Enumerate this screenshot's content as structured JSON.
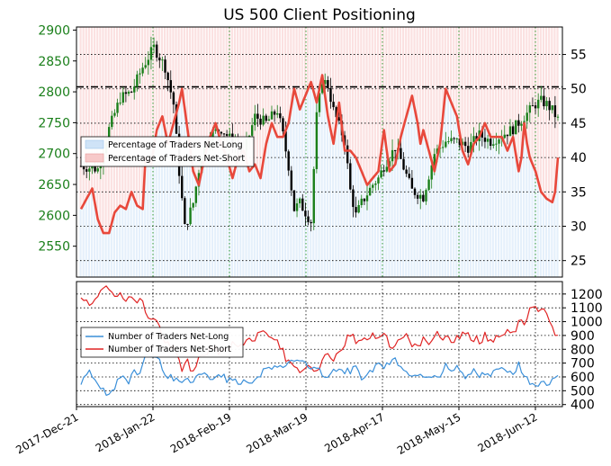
{
  "chart_data": [
    {
      "type": "line",
      "title": "US 500 Client Positioning",
      "x_dates": [
        "2017-Dec-21",
        "2018-Jan-22",
        "2018-Feb-19",
        "2018-Mar-19",
        "2018-Apr-17",
        "2018-May-15",
        "2018-Jun-12"
      ],
      "left_axis": {
        "ticks": [
          2550,
          2600,
          2650,
          2700,
          2750,
          2800,
          2850,
          2900
        ],
        "range": [
          2500,
          2905
        ]
      },
      "right_axis": {
        "ticks": [
          25,
          30,
          35,
          40,
          45,
          50,
          55
        ],
        "range": [
          22.6,
          59
        ]
      },
      "reference_level": 2808,
      "legend": [
        "Percentage of Traders Net-Long",
        "Percentage of Traders Net-Short"
      ],
      "price_anchors": [
        [
          0,
          2680
        ],
        [
          6,
          2675
        ],
        [
          10,
          2740
        ],
        [
          14,
          2790
        ],
        [
          18,
          2800
        ],
        [
          22,
          2840
        ],
        [
          26,
          2872
        ],
        [
          30,
          2840
        ],
        [
          33,
          2780
        ],
        [
          35,
          2670
        ],
        [
          37,
          2580
        ],
        [
          40,
          2620
        ],
        [
          43,
          2700
        ],
        [
          46,
          2730
        ],
        [
          50,
          2740
        ],
        [
          54,
          2720
        ],
        [
          58,
          2700
        ],
        [
          62,
          2760
        ],
        [
          66,
          2750
        ],
        [
          70,
          2770
        ],
        [
          72,
          2730
        ],
        [
          74,
          2680
        ],
        [
          76,
          2610
        ],
        [
          78,
          2620
        ],
        [
          82,
          2590
        ],
        [
          84,
          2760
        ],
        [
          86,
          2820
        ],
        [
          88,
          2810
        ],
        [
          90,
          2770
        ],
        [
          94,
          2720
        ],
        [
          96,
          2640
        ],
        [
          98,
          2600
        ],
        [
          100,
          2620
        ],
        [
          104,
          2650
        ],
        [
          106,
          2660
        ],
        [
          108,
          2680
        ],
        [
          112,
          2710
        ],
        [
          114,
          2690
        ],
        [
          118,
          2640
        ],
        [
          122,
          2630
        ],
        [
          126,
          2700
        ],
        [
          130,
          2720
        ],
        [
          134,
          2720
        ],
        [
          138,
          2710
        ],
        [
          142,
          2730
        ],
        [
          146,
          2720
        ],
        [
          150,
          2730
        ],
        [
          154,
          2740
        ],
        [
          158,
          2760
        ],
        [
          160,
          2770
        ],
        [
          162,
          2780
        ],
        [
          164,
          2785
        ],
        [
          166,
          2780
        ],
        [
          168,
          2770
        ],
        [
          170,
          2755
        ]
      ],
      "net_short_pct_anchors": [
        [
          0,
          32.5
        ],
        [
          2,
          34
        ],
        [
          4,
          35.5
        ],
        [
          6,
          31
        ],
        [
          8,
          29
        ],
        [
          10,
          29
        ],
        [
          12,
          32
        ],
        [
          14,
          33
        ],
        [
          16,
          32.5
        ],
        [
          18,
          35
        ],
        [
          20,
          33
        ],
        [
          22,
          32.5
        ],
        [
          23,
          40
        ],
        [
          25,
          39
        ],
        [
          27,
          44
        ],
        [
          29,
          46
        ],
        [
          31,
          42
        ],
        [
          33,
          45
        ],
        [
          35,
          48
        ],
        [
          36,
          50
        ],
        [
          38,
          44
        ],
        [
          40,
          38
        ],
        [
          42,
          36
        ],
        [
          44,
          40
        ],
        [
          46,
          43
        ],
        [
          48,
          45
        ],
        [
          50,
          42
        ],
        [
          52,
          40
        ],
        [
          54,
          37
        ],
        [
          56,
          40
        ],
        [
          58,
          41
        ],
        [
          60,
          38
        ],
        [
          62,
          39
        ],
        [
          64,
          37
        ],
        [
          66,
          42
        ],
        [
          68,
          45
        ],
        [
          70,
          43
        ],
        [
          72,
          43
        ],
        [
          74,
          45
        ],
        [
          76,
          50
        ],
        [
          78,
          47
        ],
        [
          80,
          49
        ],
        [
          82,
          51
        ],
        [
          84,
          48
        ],
        [
          86,
          52
        ],
        [
          88,
          46
        ],
        [
          90,
          42
        ],
        [
          92,
          48
        ],
        [
          94,
          41
        ],
        [
          96,
          41
        ],
        [
          98,
          40
        ],
        [
          100,
          38
        ],
        [
          102,
          36
        ],
        [
          104,
          37
        ],
        [
          106,
          38
        ],
        [
          108,
          44
        ],
        [
          110,
          38
        ],
        [
          112,
          39
        ],
        [
          114,
          43
        ],
        [
          116,
          46
        ],
        [
          118,
          49
        ],
        [
          120,
          45
        ],
        [
          121,
          42
        ],
        [
          122,
          44
        ],
        [
          124,
          41
        ],
        [
          126,
          38
        ],
        [
          128,
          42
        ],
        [
          130,
          50
        ],
        [
          132,
          48
        ],
        [
          134,
          46
        ],
        [
          136,
          41
        ],
        [
          138,
          39
        ],
        [
          140,
          42
        ],
        [
          142,
          43
        ],
        [
          144,
          45
        ],
        [
          146,
          43
        ],
        [
          148,
          43
        ],
        [
          150,
          43
        ],
        [
          152,
          41
        ],
        [
          154,
          43
        ],
        [
          156,
          38
        ],
        [
          157,
          40
        ],
        [
          158,
          45
        ],
        [
          159,
          42
        ],
        [
          160,
          40
        ],
        [
          162,
          38
        ],
        [
          164,
          35
        ],
        [
          166,
          34
        ],
        [
          168,
          33.5
        ],
        [
          169,
          35
        ],
        [
          170,
          40
        ]
      ]
    },
    {
      "type": "line",
      "right_axis": {
        "ticks": [
          400,
          500,
          600,
          700,
          800,
          900,
          1000,
          1100,
          1200
        ],
        "range": [
          385,
          1290
        ]
      },
      "legend": [
        "Number of Traders Net-Long",
        "Number of Traders Net-Short"
      ],
      "net_long_anchors": [
        [
          0,
          560
        ],
        [
          3,
          650
        ],
        [
          5,
          560
        ],
        [
          7,
          520
        ],
        [
          9,
          490
        ],
        [
          11,
          500
        ],
        [
          13,
          560
        ],
        [
          15,
          620
        ],
        [
          17,
          560
        ],
        [
          19,
          640
        ],
        [
          21,
          630
        ],
        [
          23,
          760
        ],
        [
          25,
          770
        ],
        [
          26,
          730
        ],
        [
          28,
          710
        ],
        [
          30,
          600
        ],
        [
          32,
          600
        ],
        [
          34,
          580
        ],
        [
          36,
          560
        ],
        [
          38,
          580
        ],
        [
          40,
          560
        ],
        [
          42,
          600
        ],
        [
          44,
          620
        ],
        [
          46,
          580
        ],
        [
          48,
          610
        ],
        [
          50,
          620
        ],
        [
          52,
          580
        ],
        [
          54,
          600
        ],
        [
          56,
          560
        ],
        [
          58,
          580
        ],
        [
          60,
          560
        ],
        [
          62,
          580
        ],
        [
          64,
          620
        ],
        [
          66,
          650
        ],
        [
          68,
          670
        ],
        [
          70,
          680
        ],
        [
          72,
          670
        ],
        [
          74,
          700
        ],
        [
          76,
          720
        ],
        [
          78,
          700
        ],
        [
          80,
          720
        ],
        [
          82,
          650
        ],
        [
          84,
          680
        ],
        [
          86,
          620
        ],
        [
          88,
          600
        ],
        [
          90,
          640
        ],
        [
          92,
          680
        ],
        [
          94,
          640
        ],
        [
          96,
          640
        ],
        [
          98,
          660
        ],
        [
          100,
          600
        ],
        [
          102,
          620
        ],
        [
          104,
          650
        ],
        [
          106,
          700
        ],
        [
          108,
          680
        ],
        [
          110,
          700
        ],
        [
          112,
          720
        ],
        [
          114,
          680
        ],
        [
          116,
          640
        ],
        [
          118,
          610
        ],
        [
          120,
          600
        ],
        [
          122,
          620
        ],
        [
          124,
          600
        ],
        [
          126,
          620
        ],
        [
          128,
          600
        ],
        [
          130,
          700
        ],
        [
          132,
          640
        ],
        [
          134,
          660
        ],
        [
          136,
          620
        ],
        [
          138,
          600
        ],
        [
          140,
          640
        ],
        [
          142,
          600
        ],
        [
          144,
          620
        ],
        [
          146,
          600
        ],
        [
          148,
          680
        ],
        [
          150,
          660
        ],
        [
          152,
          640
        ],
        [
          154,
          600
        ],
        [
          156,
          690
        ],
        [
          158,
          600
        ],
        [
          160,
          560
        ],
        [
          162,
          540
        ],
        [
          164,
          560
        ],
        [
          166,
          540
        ],
        [
          168,
          580
        ],
        [
          170,
          600
        ]
      ],
      "net_short_anchors": [
        [
          0,
          1160
        ],
        [
          2,
          1140
        ],
        [
          4,
          1120
        ],
        [
          6,
          1180
        ],
        [
          8,
          1260
        ],
        [
          10,
          1220
        ],
        [
          12,
          1180
        ],
        [
          14,
          1200
        ],
        [
          16,
          1170
        ],
        [
          18,
          1200
        ],
        [
          20,
          1140
        ],
        [
          22,
          1160
        ],
        [
          24,
          1020
        ],
        [
          26,
          1000
        ],
        [
          28,
          960
        ],
        [
          30,
          860
        ],
        [
          32,
          820
        ],
        [
          34,
          780
        ],
        [
          36,
          640
        ],
        [
          38,
          700
        ],
        [
          40,
          620
        ],
        [
          42,
          740
        ],
        [
          44,
          760
        ],
        [
          46,
          820
        ],
        [
          48,
          800
        ],
        [
          50,
          780
        ],
        [
          52,
          800
        ],
        [
          54,
          840
        ],
        [
          56,
          820
        ],
        [
          58,
          840
        ],
        [
          60,
          880
        ],
        [
          62,
          840
        ],
        [
          64,
          940
        ],
        [
          66,
          920
        ],
        [
          68,
          900
        ],
        [
          70,
          860
        ],
        [
          72,
          780
        ],
        [
          74,
          700
        ],
        [
          76,
          660
        ],
        [
          78,
          640
        ],
        [
          80,
          680
        ],
        [
          82,
          640
        ],
        [
          84,
          620
        ],
        [
          86,
          720
        ],
        [
          88,
          760
        ],
        [
          90,
          740
        ],
        [
          92,
          800
        ],
        [
          94,
          850
        ],
        [
          96,
          920
        ],
        [
          98,
          840
        ],
        [
          100,
          860
        ],
        [
          102,
          880
        ],
        [
          104,
          900
        ],
        [
          106,
          880
        ],
        [
          108,
          940
        ],
        [
          110,
          820
        ],
        [
          112,
          840
        ],
        [
          114,
          860
        ],
        [
          116,
          900
        ],
        [
          118,
          840
        ],
        [
          120,
          820
        ],
        [
          122,
          860
        ],
        [
          124,
          840
        ],
        [
          126,
          920
        ],
        [
          128,
          880
        ],
        [
          130,
          900
        ],
        [
          132,
          860
        ],
        [
          134,
          880
        ],
        [
          136,
          920
        ],
        [
          138,
          900
        ],
        [
          140,
          880
        ],
        [
          142,
          860
        ],
        [
          144,
          900
        ],
        [
          146,
          860
        ],
        [
          148,
          900
        ],
        [
          150,
          880
        ],
        [
          152,
          920
        ],
        [
          154,
          900
        ],
        [
          156,
          980
        ],
        [
          158,
          1000
        ],
        [
          160,
          1080
        ],
        [
          162,
          1100
        ],
        [
          164,
          1080
        ],
        [
          166,
          1060
        ],
        [
          168,
          980
        ],
        [
          170,
          880
        ]
      ]
    }
  ]
}
